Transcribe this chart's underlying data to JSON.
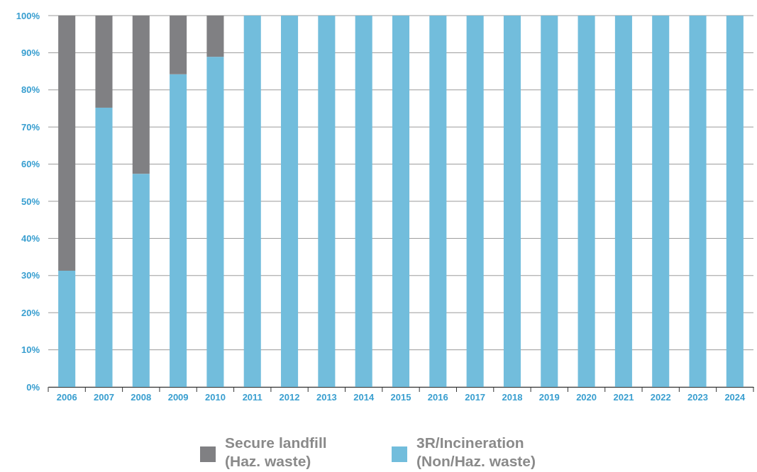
{
  "chart_data": {
    "type": "bar",
    "stacked": true,
    "grid": "y",
    "legend": "bottom",
    "categories": [
      "2006",
      "2007",
      "2008",
      "2009",
      "2010",
      "2011",
      "2012",
      "2013",
      "2014",
      "2015",
      "2016",
      "2017",
      "2018",
      "2019",
      "2020",
      "2021",
      "2022",
      "2023",
      "2024"
    ],
    "series": [
      {
        "name": "3R/Incineration (Non/Haz. waste)",
        "color": "#72bddc",
        "values": [
          31.3,
          75.2,
          57.4,
          84.2,
          88.9,
          100,
          100,
          100,
          100,
          100,
          100,
          100,
          100,
          100,
          100,
          100,
          100,
          100,
          100
        ]
      },
      {
        "name": "Secure landfill (Haz. waste)",
        "color": "#808083",
        "values": [
          68.7,
          24.8,
          42.6,
          15.8,
          11.1,
          0,
          0,
          0,
          0,
          0,
          0,
          0,
          0,
          0,
          0,
          0,
          0,
          0,
          0
        ]
      }
    ],
    "ylim": [
      0,
      100
    ],
    "yticks": [
      {
        "value": 0,
        "label": "0%"
      },
      {
        "value": 10,
        "label": "10%"
      },
      {
        "value": 20,
        "label": "20%"
      },
      {
        "value": 30,
        "label": "30%"
      },
      {
        "value": 40,
        "label": "40%"
      },
      {
        "value": 50,
        "label": "50%"
      },
      {
        "value": 60,
        "label": "60%"
      },
      {
        "value": 70,
        "label": "70%"
      },
      {
        "value": 80,
        "label": "80%"
      },
      {
        "value": 90,
        "label": "90%"
      },
      {
        "value": 100,
        "label": "100%"
      }
    ]
  }
}
